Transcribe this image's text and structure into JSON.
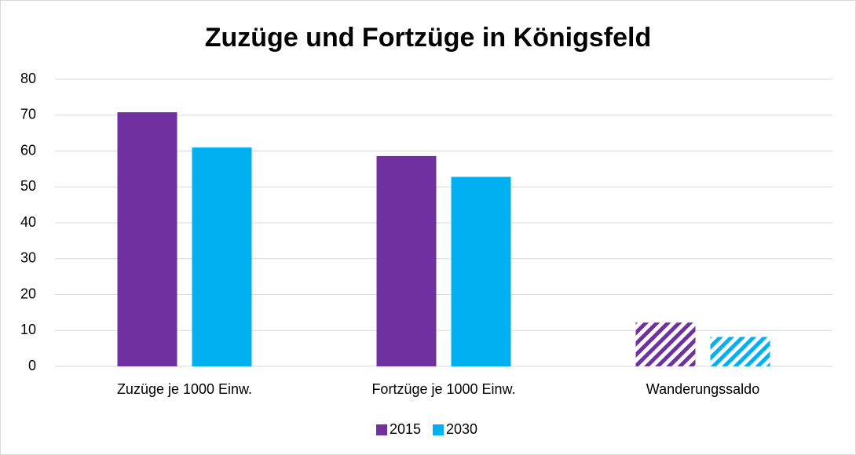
{
  "chart_data": {
    "type": "bar",
    "title": "Zuzüge und Fortzüge in Königsfeld",
    "categories": [
      "Zuzüge je 1000 Einw.",
      "Fortzüge je 1000 Einw.",
      "Wanderungssaldo"
    ],
    "series": [
      {
        "name": "2015",
        "color": "#7030a0",
        "values": [
          70.8,
          58.6,
          12.2
        ]
      },
      {
        "name": "2030",
        "color": "#00b0f0",
        "values": [
          61,
          52.8,
          8.2
        ]
      }
    ],
    "hatched": [
      false,
      false,
      true
    ],
    "ylim": [
      0,
      80
    ],
    "yticks": [
      0,
      10,
      20,
      30,
      40,
      50,
      60,
      70,
      80
    ],
    "grid": true,
    "legend": "bottom"
  }
}
